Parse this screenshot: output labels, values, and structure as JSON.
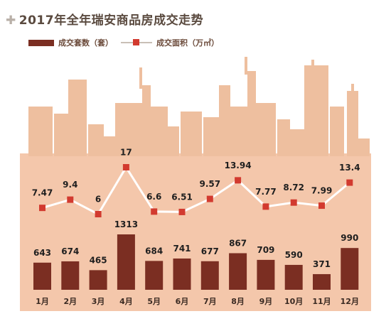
{
  "title": "2017年全年瑞安商品房成交走势",
  "title_icon": "plus-icon",
  "colors": {
    "bar": "#7b2e22",
    "line": "#ffffff",
    "marker": "#d23a2f",
    "plot_bg": "#f4c7ab",
    "skyline": "#eebf9f"
  },
  "chart_data": {
    "type": "bar",
    "categories": [
      "1月",
      "2月",
      "3月",
      "4月",
      "5月",
      "6月",
      "7月",
      "8月",
      "9月",
      "10月",
      "11月",
      "12月"
    ],
    "series": [
      {
        "name": "成交套数（套）",
        "type": "bar",
        "values": [
          643,
          674,
          465,
          1313,
          684,
          741,
          677,
          867,
          709,
          590,
          371,
          990
        ]
      },
      {
        "name": "成交面积（万㎡）",
        "type": "line",
        "values": [
          7.47,
          9.4,
          6,
          17,
          6.6,
          6.51,
          9.57,
          13.94,
          7.77,
          8.72,
          7.99,
          13.4
        ]
      }
    ],
    "legend": "top-left",
    "grid": false
  }
}
